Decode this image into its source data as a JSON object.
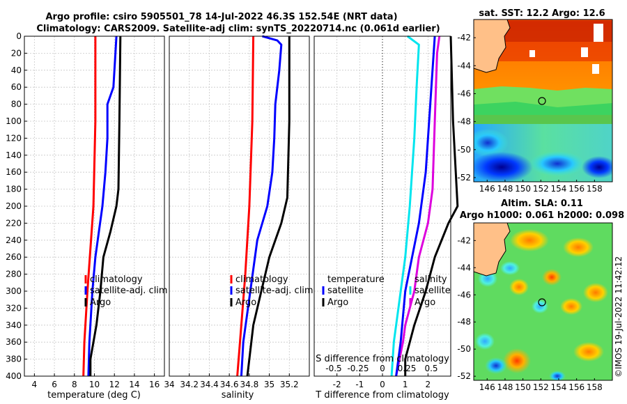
{
  "titles": {
    "line1": "Argo profile: csiro 5905501_78 14-Jul-2022 46.3S 152.54E (NRT data)",
    "line2": "Climatology: CARS2009. Satellite-adj clim: synTS_20220714.nc (0.061d earlier)",
    "sst": "sat. SST: 12.2 Argo: 12.6",
    "alt1": "Altim. SLA: 0.11",
    "alt2": "Argo h1000: 0.061 h2000: 0.098",
    "credit": "©IMOS 19-Jul-2022 11:42:12"
  },
  "colors": {
    "climatology": "#ff0000",
    "satellite": "#0000ff",
    "argo": "#000000",
    "t_diff": "#00e5ee",
    "s_diff": "#dd00dd"
  },
  "chart_data": [
    {
      "type": "line",
      "id": "temperature",
      "xlabel": "temperature (deg C)",
      "ylabel": "",
      "xlim": [
        3,
        17
      ],
      "ylim": [
        0,
        400
      ],
      "xticks": [
        4,
        6,
        8,
        10,
        12,
        14,
        16
      ],
      "yticks": [
        0,
        20,
        40,
        60,
        80,
        100,
        120,
        140,
        160,
        180,
        200,
        220,
        240,
        260,
        280,
        300,
        320,
        340,
        360,
        380,
        400
      ],
      "legend": [
        "climatology",
        "satellite-adj. clim",
        "Argo"
      ],
      "series": [
        {
          "name": "climatology",
          "color": "#ff0000",
          "depth": [
            0,
            100,
            200,
            300,
            360,
            400
          ],
          "values": [
            10.1,
            10.1,
            9.9,
            9.3,
            9.0,
            8.9
          ]
        },
        {
          "name": "satellite-adj. clim",
          "color": "#0000ff",
          "depth": [
            0,
            20,
            60,
            80,
            120,
            160,
            200,
            260,
            300,
            360,
            400
          ],
          "values": [
            12.2,
            12.1,
            11.9,
            11.3,
            11.3,
            11.1,
            10.8,
            10.1,
            9.8,
            9.5,
            9.4
          ]
        },
        {
          "name": "Argo",
          "color": "#000000",
          "depth": [
            0,
            100,
            180,
            200,
            230,
            260,
            300,
            340,
            380,
            400
          ],
          "values": [
            12.6,
            12.5,
            12.4,
            12.2,
            11.6,
            10.9,
            10.6,
            10.2,
            9.6,
            9.6
          ]
        }
      ]
    },
    {
      "type": "line",
      "id": "salinity",
      "xlabel": "salinity",
      "xlim": [
        34,
        35.4
      ],
      "ylim": [
        0,
        400
      ],
      "xticks": [
        34,
        34.2,
        34.4,
        34.6,
        34.8,
        35,
        35.2
      ],
      "legend": [
        "climatology",
        "satellite-adj. clim",
        "Argo"
      ],
      "series": [
        {
          "name": "climatology",
          "color": "#ff0000",
          "depth": [
            0,
            100,
            200,
            280,
            340,
            400
          ],
          "values": [
            34.84,
            34.83,
            34.8,
            34.76,
            34.72,
            34.68
          ]
        },
        {
          "name": "satellite-adj. clim",
          "color": "#0000ff",
          "depth": [
            0,
            5,
            10,
            40,
            80,
            120,
            160,
            200,
            240,
            300,
            360,
            400
          ],
          "values": [
            34.93,
            35.08,
            35.12,
            35.1,
            35.06,
            35.05,
            35.03,
            34.98,
            34.88,
            34.81,
            34.74,
            34.72
          ]
        },
        {
          "name": "Argo",
          "color": "#000000",
          "depth": [
            0,
            100,
            190,
            220,
            260,
            300,
            340,
            380,
            400
          ],
          "values": [
            35.2,
            35.2,
            35.18,
            35.12,
            35.0,
            34.92,
            34.84,
            34.8,
            34.78
          ]
        }
      ]
    },
    {
      "type": "line",
      "id": "differences",
      "xlabel": "T difference from climatology",
      "x2label": "S difference from climatology",
      "xlim": [
        -3,
        3
      ],
      "ylim": [
        0,
        400
      ],
      "xticks": [
        -2,
        -1,
        0,
        1,
        2
      ],
      "x2ticks": [
        -0.5,
        -0.25,
        0,
        0.25,
        0.5
      ],
      "legend_left_title": "temperature",
      "legend_right_title": "salinity",
      "legend": [
        "satellite",
        "Argo"
      ],
      "series": [
        {
          "name": "T satellite",
          "color": "#00e5ee",
          "depth": [
            0,
            10,
            60,
            120,
            200,
            260,
            320,
            360,
            400
          ],
          "values": [
            1.1,
            1.6,
            1.5,
            1.4,
            1.2,
            1.0,
            0.7,
            0.5,
            0.4
          ]
        },
        {
          "name": "S satellite",
          "color": "#dd00dd",
          "depth": [
            0,
            20,
            100,
            180,
            220,
            260,
            300,
            340,
            360,
            400
          ],
          "values": [
            2.5,
            2.4,
            2.3,
            2.2,
            2.0,
            1.6,
            1.4,
            1.0,
            0.9,
            0.6
          ]
        },
        {
          "name": "T Argo",
          "color": "#0000ff",
          "depth": [
            0,
            80,
            160,
            220,
            260,
            300,
            360,
            400
          ],
          "values": [
            2.3,
            2.1,
            1.9,
            1.6,
            1.3,
            1.0,
            0.8,
            0.6
          ]
        },
        {
          "name": "S Argo",
          "color": "#000000",
          "depth": [
            0,
            100,
            200,
            220,
            260,
            300,
            340,
            380,
            400
          ],
          "values": [
            3.0,
            3.1,
            3.3,
            2.9,
            2.3,
            1.9,
            1.4,
            1.0,
            1.0
          ]
        }
      ]
    },
    {
      "type": "heatmap",
      "id": "sst_map",
      "title": "sat. SST: 12.2 Argo: 12.6",
      "xlim": [
        144.5,
        160
      ],
      "ylim": [
        -52.3,
        -40.7
      ],
      "xticks": [
        146,
        148,
        150,
        152,
        154,
        156,
        158
      ],
      "yticks": [
        -42,
        -44,
        -46,
        -48,
        -50,
        -52
      ],
      "argo_position": [
        152.54,
        -46.3
      ]
    },
    {
      "type": "heatmap",
      "id": "sla_map",
      "title": "Altim. SLA: 0.11",
      "xlim": [
        144.5,
        160
      ],
      "ylim": [
        -52.3,
        -40.7
      ],
      "xticks": [
        146,
        148,
        150,
        152,
        154,
        156,
        158
      ],
      "yticks": [
        -42,
        -44,
        -46,
        -48,
        -50,
        -52
      ],
      "argo_position": [
        152.54,
        -46.3
      ]
    }
  ]
}
